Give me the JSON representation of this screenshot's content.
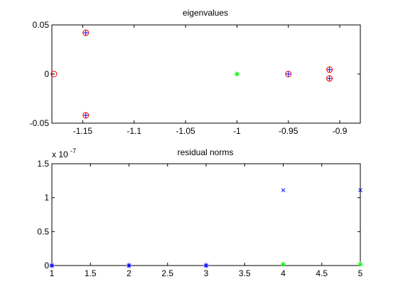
{
  "chart_data": [
    {
      "type": "scatter",
      "title": "eigenvalues",
      "xlabel": "",
      "ylabel": "",
      "xlim": [
        -1.18,
        -0.88
      ],
      "ylim": [
        -0.05,
        0.05
      ],
      "xticks": [
        -1.15,
        -1.1,
        -1.05,
        -1,
        -0.95,
        -0.9
      ],
      "xtick_labels": [
        "-1.15",
        "-1.1",
        "-1.05",
        "-1",
        "-0.95",
        "-0.9"
      ],
      "yticks": [
        0.05,
        0,
        -0.05
      ],
      "ytick_labels": [
        "0.05",
        "0",
        "-0.05"
      ],
      "grid": false,
      "series": [
        {
          "marker": "circle",
          "color": "#ff0000",
          "points": [
            [
              -1.178,
              0
            ],
            [
              -1.147,
              0.042
            ],
            [
              -1.147,
              -0.042
            ],
            [
              -0.95,
              0
            ],
            [
              -0.91,
              0.0045
            ],
            [
              -0.91,
              -0.0045
            ]
          ]
        },
        {
          "marker": "plus",
          "color": "#0000ff",
          "points": [
            [
              -1.147,
              0.042
            ],
            [
              -1.147,
              -0.042
            ],
            [
              -0.95,
              0
            ],
            [
              -0.91,
              0.0045
            ],
            [
              -0.91,
              -0.0045
            ]
          ]
        },
        {
          "marker": "star",
          "color": "#00ff00",
          "points": [
            [
              -1.0,
              0
            ]
          ]
        }
      ]
    },
    {
      "type": "scatter",
      "title": "residual norms",
      "xlabel": "",
      "ylabel": "",
      "exponent_label": "x 10",
      "exponent_power": "-7",
      "xlim": [
        1,
        5
      ],
      "ylim": [
        0,
        1.5
      ],
      "xticks": [
        1,
        1.5,
        2,
        2.5,
        3,
        3.5,
        4,
        4.5,
        5
      ],
      "xtick_labels": [
        "1",
        "1.5",
        "2",
        "2.5",
        "3",
        "3.5",
        "4",
        "4.5",
        "5"
      ],
      "yticks": [
        1.5,
        1,
        0.5,
        0
      ],
      "ytick_labels": [
        "1.5",
        "1",
        "0.5",
        "0"
      ],
      "grid": false,
      "series": [
        {
          "marker": "x",
          "color": "#0000ff",
          "points": [
            [
              1,
              0
            ],
            [
              2,
              0
            ],
            [
              3,
              0
            ],
            [
              4,
              1.11
            ],
            [
              5,
              1.11
            ]
          ]
        },
        {
          "marker": "star",
          "color": "#00ff00",
          "points": [
            [
              4,
              0.02
            ],
            [
              5,
              0.02
            ]
          ]
        },
        {
          "marker": "star",
          "color": "#0000ff",
          "points": [
            [
              1,
              0
            ],
            [
              2,
              0
            ],
            [
              3,
              0
            ]
          ]
        }
      ]
    }
  ]
}
